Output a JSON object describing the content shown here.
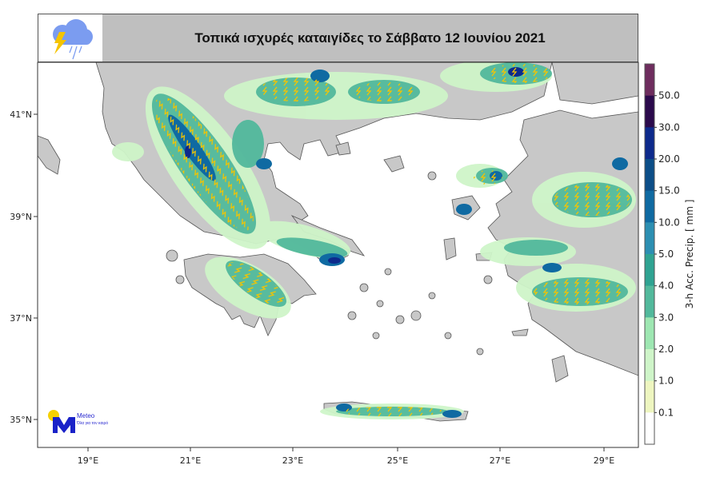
{
  "header": {
    "title": "Τοπικά ισχυρές καταιγίδες το Σάββατο 12 Ιουνίου 2021",
    "icon": "storm-cloud-lightning-rain-icon"
  },
  "map": {
    "lon_ticks": [
      "19°E",
      "21°E",
      "23°E",
      "25°E",
      "27°E",
      "29°E"
    ],
    "lat_ticks": [
      "41°N",
      "39°N",
      "37°N",
      "35°N"
    ],
    "land_color": "#c8c8c8",
    "sea_color": "#ffffff",
    "lightning_color": "#f5c400"
  },
  "colorbar": {
    "label": "3-h Acc. Precip. [ mm ]",
    "ticks": [
      "50.0",
      "30.0",
      "20.0",
      "15.0",
      "10.0",
      "5.0",
      "4.0",
      "3.0",
      "2.0",
      "1.0",
      "0.1"
    ],
    "colors": [
      "#6e2d5e",
      "#2b0a4c",
      "#0d2a8c",
      "#0c4e88",
      "#0f6aa2",
      "#2c8fb2",
      "#2fa392",
      "#52b99c",
      "#9ee7b2",
      "#cff5c9",
      "#eef6c0",
      "#ffffff"
    ]
  },
  "logo": {
    "name": "Meteo",
    "slogan": "Όλα για τον καιρό",
    "colors": {
      "sun": "#f5d000",
      "mark": "#1a22c8"
    }
  }
}
